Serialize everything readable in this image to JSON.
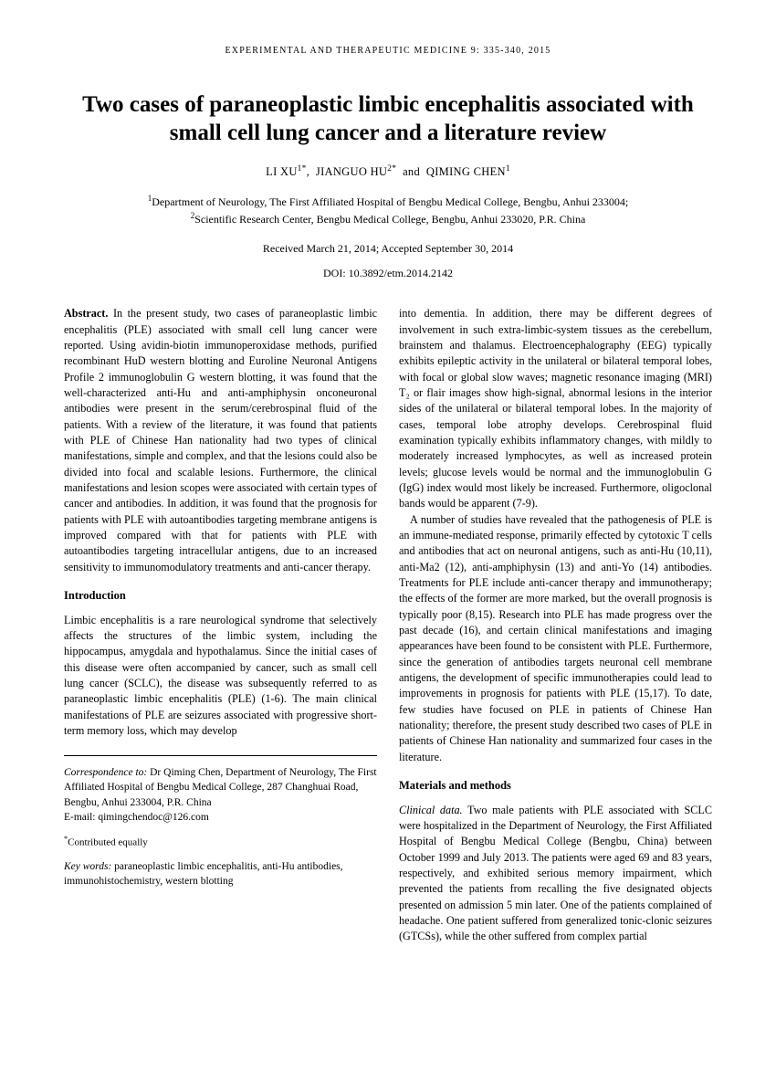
{
  "journal_header": "EXPERIMENTAL AND THERAPEUTIC MEDICINE  9:  335-340,  2015",
  "title": "Two cases of paraneoplastic limbic encephalitis associated with small cell lung cancer and a literature review",
  "authors_html": "LI XU<sup>1*</sup>,&nbsp;&nbsp;JIANGUO HU<sup>2*</sup>&nbsp;&nbsp;and&nbsp;&nbsp;QIMING CHEN<sup>1</sup>",
  "affiliations_html": "<sup>1</sup>Department of Neurology, The First Affiliated Hospital of Bengbu Medical College, Bengbu, Anhui 233004;<br><sup>2</sup>Scientific Research Center, Bengbu Medical College, Bengbu, Anhui 233020, P.R. China",
  "dates": "Received March 21, 2014;   Accepted September 30, 2014",
  "doi": "DOI: 10.3892/etm.2014.2142",
  "abstract_label": "Abstract.",
  "abstract_text": " In the present study, two cases of paraneoplastic limbic encephalitis (PLE) associated with small cell lung cancer were reported. Using avidin-biotin immunoperoxidase methods, purified recombinant HuD western blotting and Euroline Neuronal Antigens Profile 2 immunoglobulin G western blotting, it was found that the well-characterized anti-Hu and anti-amphiphysin onconeuronal antibodies were present in the serum/cerebrospinal fluid of the patients. With a review of the literature, it was found that patients with PLE of Chinese Han nationality had two types of clinical manifestations, simple and complex, and that the lesions could also be divided into focal and scalable lesions. Furthermore, the clinical manifestations and lesion scopes were associated with certain types of cancer and antibodies. In addition, it was found that the prognosis for patients with PLE with autoantibodies targeting membrane antigens is improved compared with that for patients with PLE with autoantibodies targeting intracellular antigens, due to an increased sensitivity to immunomodulatory treatments and anti-cancer therapy.",
  "intro_heading": "Introduction",
  "intro_p1": "Limbic encephalitis is a rare neurological syndrome that selectively affects the structures of the limbic system, including the hippocampus, amygdala and hypothalamus. Since the initial cases of this disease were often accompanied by cancer, such as small cell lung cancer (SCLC), the disease was subsequently referred to as paraneoplastic limbic encephalitis (PLE) (1-6). The main clinical manifestations of PLE are seizures associated with progressive short-term memory loss, which may develop",
  "col2_p1": "into dementia. In addition, there may be different degrees of involvement in such extra-limbic-system tissues as the cerebellum, brainstem and thalamus. Electroencephalography (EEG) typically exhibits epileptic activity in the unilateral or bilateral temporal lobes, with focal or global slow waves; magnetic resonance imaging (MRI) T₂ or flair images show high-signal, abnormal lesions in the interior sides of the unilateral or bilateral temporal lobes. In the majority of cases, temporal lobe atrophy develops. Cerebrospinal fluid examination typically exhibits inflammatory changes, with mildly to moderately increased lymphocytes, as well as increased protein levels; glucose levels would be normal and the immunoglobulin G (IgG) index would most likely be increased. Furthermore, oligoclonal bands would be apparent (7-9).",
  "col2_p2": "A number of studies have revealed that the pathogenesis of PLE is an immune-mediated response, primarily effected by cytotoxic T cells and antibodies that act on neuronal antigens, such as anti-Hu (10,11), anti-Ma2 (12), anti-amphiphysin (13) and anti-Yo (14) antibodies. Treatments for PLE include anti-cancer therapy and immunotherapy; the effects of the former are more marked, but the overall prognosis is typically poor (8,15). Research into PLE has made progress over the past decade (16), and certain clinical manifestations and imaging appearances have been found to be consistent with PLE. Furthermore, since the generation of antibodies targets neuronal cell membrane antigens, the development of specific immunotherapies could lead to improvements in prognosis for patients with PLE (15,17). To date, few studies have focused on PLE in patients of Chinese Han nationality; therefore, the present study described two cases of PLE in patients of Chinese Han nationality and summarized four cases in the literature.",
  "mm_heading": "Materials and methods",
  "mm_p1_html": "<i>Clinical data.</i> Two male patients with PLE associated with SCLC were hospitalized in the Department of Neurology, the First Affiliated Hospital of Bengbu Medical College (Bengbu, China) between October 1999 and July 2013. The patients were aged 69 and 83 years, respectively, and exhibited serious memory impairment, which prevented the patients from recalling the five designated objects presented on admission 5 min later. One of the patients complained of headache. One patient suffered from generalized tonic-clonic seizures (GTCSs), while the other suffered from complex partial",
  "correspondence_label": "Correspondence to:",
  "correspondence_text": " Dr Qiming Chen, Department of Neurology, The First Affiliated Hospital of Bengbu Medical College, 287 Changhuai Road, Bengbu, Anhui 233004, P.R. China",
  "correspondence_email": "E-mail: qimingchendoc@126.com",
  "contributed_html": "<sup>*</sup>Contributed equally",
  "keywords_label": "Key words:",
  "keywords_text": " paraneoplastic limbic encephalitis, anti-Hu antibodies, immunohistochemistry, western blotting"
}
